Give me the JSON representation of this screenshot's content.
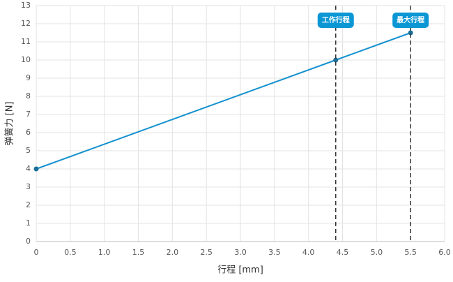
{
  "chart_data": {
    "type": "line",
    "x": [
      0,
      4.4,
      5.5
    ],
    "values": [
      4,
      10,
      11.5
    ],
    "color": "#1591cf",
    "marker_color": "#1a6f9a",
    "xlabel": "行程 [mm]",
    "ylabel": "弹簧力 [N]",
    "xlim": [
      0,
      6
    ],
    "xticks": [
      0,
      0.5,
      {
        "value": 1,
        "label": "1.0"
      },
      1.5,
      {
        "value": 2,
        "label": "2.0"
      },
      2.5,
      {
        "value": 3,
        "label": "3.0"
      },
      3.5,
      {
        "value": 4,
        "label": "4.0"
      },
      4.5,
      {
        "value": 5,
        "label": "5.0"
      },
      5.5,
      {
        "value": 6,
        "label": "6.0"
      }
    ],
    "ylim": [
      0,
      13
    ],
    "yticks": [
      0,
      1,
      2,
      3,
      4,
      5,
      6,
      7,
      8,
      9,
      10,
      11,
      12,
      13
    ],
    "grid": true,
    "annotations": [
      {
        "x": 4.4,
        "label": "工作行程"
      },
      {
        "x": 5.5,
        "label": "最大行程"
      }
    ],
    "annotation_color": "#0b97d4"
  }
}
